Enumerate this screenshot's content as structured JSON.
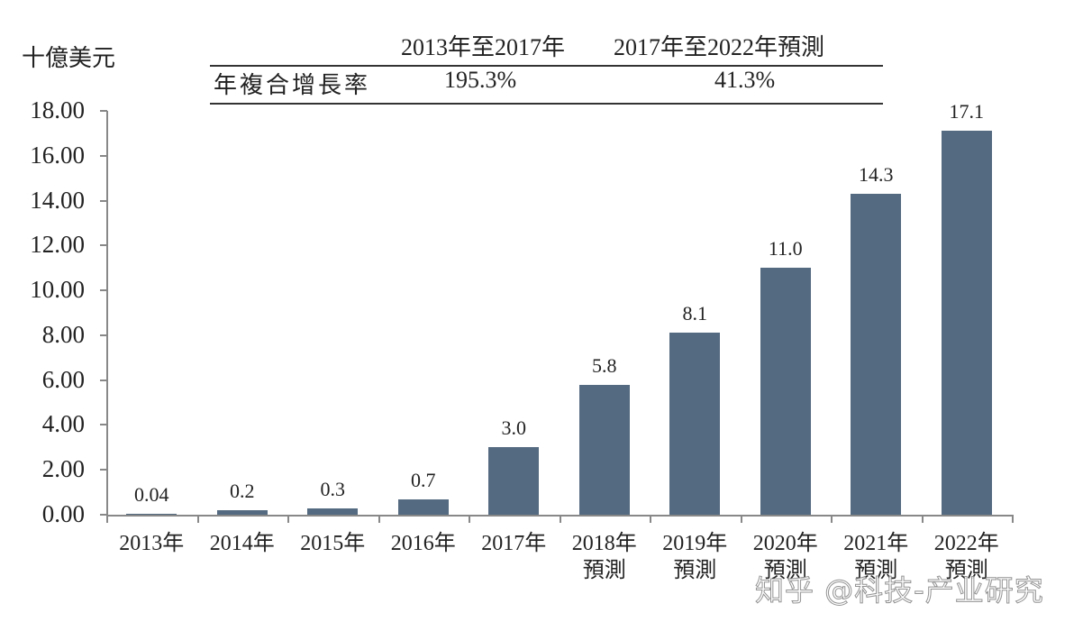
{
  "unit_label": "十億美元",
  "cagr_table": {
    "header": [
      "",
      "2013年至2017年",
      "2017年至2022年預測"
    ],
    "row_label": "年複合增長率",
    "values": [
      "195.3%",
      "41.3%"
    ]
  },
  "watermark": "知乎 @科技-产业研究",
  "colors": {
    "bar": "#546a80",
    "axis": "#888888"
  },
  "chart_data": {
    "type": "bar",
    "title": "",
    "xlabel": "",
    "ylabel": "十億美元",
    "ylim": [
      0,
      18
    ],
    "yticks": [
      "0.00",
      "2.00",
      "4.00",
      "6.00",
      "8.00",
      "10.00",
      "12.00",
      "14.00",
      "16.00",
      "18.00"
    ],
    "grid": false,
    "legend": null,
    "categories": [
      "2013年",
      "2014年",
      "2015年",
      "2016年",
      "2017年",
      "2018年預測",
      "2019年預測",
      "2020年預測",
      "2021年預測",
      "2022年預測"
    ],
    "category_lines": [
      [
        "2013年",
        ""
      ],
      [
        "2014年",
        ""
      ],
      [
        "2015年",
        ""
      ],
      [
        "2016年",
        ""
      ],
      [
        "2017年",
        ""
      ],
      [
        "2018年",
        "預測"
      ],
      [
        "2019年",
        "預測"
      ],
      [
        "2020年",
        "預測"
      ],
      [
        "2021年",
        "預測"
      ],
      [
        "2022年",
        "預測"
      ]
    ],
    "values": [
      0.04,
      0.2,
      0.3,
      0.7,
      3.0,
      5.8,
      8.1,
      11.0,
      14.3,
      17.1
    ],
    "data_labels": [
      "0.04",
      "0.2",
      "0.3",
      "0.7",
      "3.0",
      "5.8",
      "8.1",
      "11.0",
      "14.3",
      "17.1"
    ],
    "annotations": {
      "cagr_2013_2017": "195.3%",
      "cagr_2017_2022_forecast": "41.3%"
    }
  }
}
